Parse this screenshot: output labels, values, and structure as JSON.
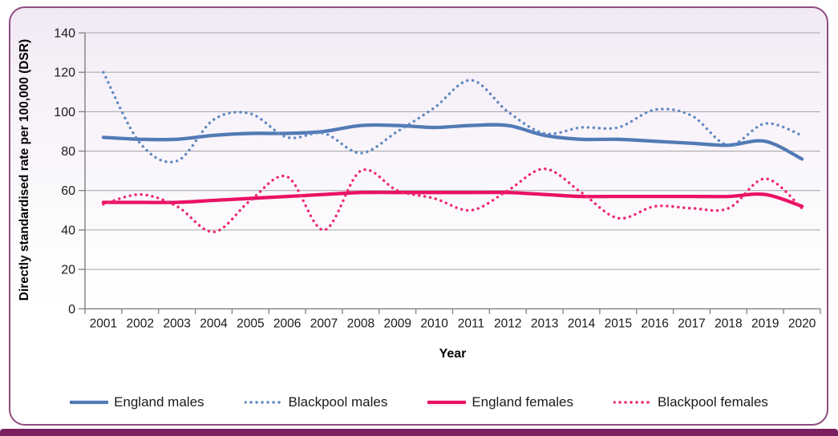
{
  "colors": {
    "card_border": "#8E4D7F",
    "bottom_banner": "#7A2060",
    "gridline": "#A3A3A3",
    "axis": "#7F7F7F",
    "tick_text": "#1A1A1A",
    "blue_solid": "#527AB5",
    "blue_dotted": "#5E88C2",
    "pink_solid": "#EA1164",
    "pink_dotted": "#F0256E"
  },
  "chart_data": {
    "type": "line",
    "title": "",
    "xlabel": "Year",
    "ylabel": "Directly standardised rate per 100,000 (DSR)",
    "x": [
      2001,
      2002,
      2003,
      2004,
      2005,
      2006,
      2007,
      2008,
      2009,
      2010,
      2011,
      2012,
      2013,
      2014,
      2015,
      2016,
      2017,
      2018,
      2019,
      2020
    ],
    "ylim": [
      0,
      140
    ],
    "ytick_step": 20,
    "yticks": [
      0,
      20,
      40,
      60,
      80,
      100,
      120,
      140
    ],
    "grid": "horizontal",
    "legend_position": "bottom",
    "line_style_note": "solid lines = England, dotted lines = Blackpool; all lines smoothed",
    "series": [
      {
        "name": "England males",
        "style": "solid",
        "color": "#527AB5",
        "values": [
          87,
          86,
          86,
          88,
          89,
          89,
          90,
          93,
          93,
          92,
          93,
          93,
          88,
          86,
          86,
          85,
          84,
          83,
          85,
          76
        ]
      },
      {
        "name": "Blackpool males",
        "style": "dotted",
        "color": "#5E88C2",
        "values": [
          120,
          84,
          75,
          96,
          99,
          87,
          89,
          79,
          90,
          102,
          116,
          100,
          89,
          92,
          92,
          101,
          98,
          83,
          94,
          88
        ]
      },
      {
        "name": "England females",
        "style": "solid",
        "color": "#EA1164",
        "values": [
          54,
          54,
          54,
          55,
          56,
          57,
          58,
          59,
          59,
          59,
          59,
          59,
          58,
          57,
          57,
          57,
          57,
          57,
          58,
          52
        ]
      },
      {
        "name": "Blackpool females",
        "style": "dotted",
        "color": "#F0256E",
        "values": [
          53,
          58,
          52,
          39,
          55,
          67,
          40,
          70,
          60,
          56,
          50,
          60,
          71,
          59,
          46,
          52,
          51,
          51,
          66,
          51
        ]
      }
    ]
  }
}
